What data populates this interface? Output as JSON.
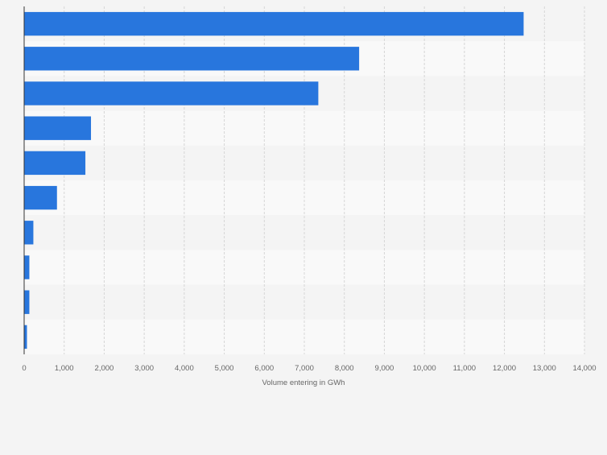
{
  "chart_data": {
    "type": "bar",
    "orientation": "horizontal",
    "title": "",
    "xlabel": "Volume entering in GWh",
    "ylabel": "",
    "categories": [
      "",
      "",
      "",
      "",
      "",
      "",
      "",
      "",
      "",
      ""
    ],
    "values": [
      12480,
      8370,
      7350,
      1670,
      1530,
      820,
      230,
      130,
      130,
      70
    ],
    "xlim": [
      0,
      14000
    ],
    "xticks": [
      0,
      1000,
      2000,
      3000,
      4000,
      5000,
      6000,
      7000,
      8000,
      9000,
      10000,
      11000,
      12000,
      13000,
      14000
    ],
    "xtick_labels": [
      "0",
      "1,000",
      "2,000",
      "3,000",
      "4,000",
      "5,000",
      "6,000",
      "7,000",
      "8,000",
      "9,000",
      "10,000",
      "11,000",
      "12,000",
      "13,000",
      "14,000"
    ],
    "grid": true,
    "bar_color": "#2876dd",
    "band_colors": [
      "#f4f4f4",
      "#f9f9f9"
    ],
    "background": "#f4f4f4"
  }
}
